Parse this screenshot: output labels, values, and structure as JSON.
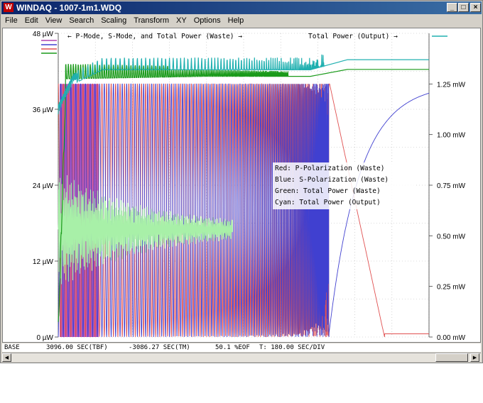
{
  "window": {
    "title": "WINDAQ - 1007-1m1.WDQ",
    "icon": "windaq-app-icon",
    "controls": {
      "minimize": "_",
      "maximize": "□",
      "close": "×"
    }
  },
  "menu": [
    "File",
    "Edit",
    "View",
    "Search",
    "Scaling",
    "Transform",
    "XY",
    "Options",
    "Help"
  ],
  "chart_data": {
    "type": "line",
    "left_axis": {
      "unit": "µW",
      "ticks": [
        "48 µW",
        "36 µW",
        "24 µW",
        "12 µW",
        "0 µW"
      ],
      "range": [
        0,
        48
      ]
    },
    "right_axis": {
      "unit": "mW",
      "ticks": [
        "1.25 mW",
        "1.00 mW",
        "0.75 mW",
        "0.50 mW",
        "0.25 mW",
        "0.00 mW"
      ],
      "range": [
        0,
        1.5
      ]
    },
    "annotations": {
      "top_left": "P-Mode, S-Mode, and Total Power (Waste)",
      "top_right": "Total Power (Output)"
    },
    "legend": [
      {
        "label": "Red: P-Polarization (Waste)",
        "color": "#e05050"
      },
      {
        "label": "Blue: S-Polarization (Waste)",
        "color": "#4040d0"
      },
      {
        "label": "Green: Total Power (Waste)",
        "color": "#1a9a1a"
      },
      {
        "label": "Cyan: Total Power (Output)",
        "color": "#20b0b0"
      }
    ],
    "channel_swatches": [
      "#b040b0",
      "#4040d0",
      "#e05050",
      "#1a9a1a"
    ],
    "colors": {
      "red": "#e05050",
      "blue": "#4040d0",
      "green": "#1a9a1a",
      "cyan": "#20b0b0",
      "magenta": "#b040b0",
      "light_green": "#a8f0a8"
    },
    "green_total_waste_uW_by_time": [
      [
        0,
        0
      ],
      [
        0.02,
        38
      ],
      [
        0.05,
        40.8
      ],
      [
        0.4,
        41.2
      ],
      [
        0.68,
        41.2
      ],
      [
        0.78,
        42.3
      ],
      [
        1.0,
        42.3
      ]
    ],
    "cyan_total_output_mW_by_time": [
      [
        0,
        1.1
      ],
      [
        0.04,
        1.25
      ],
      [
        0.12,
        1.32
      ],
      [
        0.68,
        1.32
      ],
      [
        0.78,
        1.37
      ],
      [
        1.0,
        1.37
      ]
    ]
  },
  "status": {
    "base": "BASE",
    "tbf": "3096.00 SEC(TBF)",
    "tm": "-3086.27 SEC(TM)",
    "eof": "50.1 %EOF",
    "tdiv": "T: 180.00 SEC/DIV"
  }
}
